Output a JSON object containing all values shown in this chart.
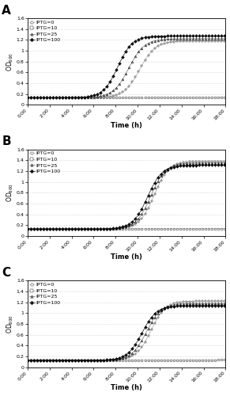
{
  "panels": [
    "A",
    "B",
    "C"
  ],
  "xlabel": "Time (h)",
  "ylabel": "OD$_{600}$",
  "ylim": [
    0,
    1.6
  ],
  "yticks": [
    0,
    0.2,
    0.4,
    0.6,
    0.8,
    1.0,
    1.2,
    1.4,
    1.6
  ],
  "ytick_labels": [
    "0",
    "0.2",
    "0.4",
    "0.6",
    "0.8",
    "1",
    "1.2",
    "1.4",
    "1.6"
  ],
  "xtick_positions": [
    0,
    2,
    4,
    6,
    8,
    10,
    12,
    14,
    16,
    18
  ],
  "xtick_labels": [
    "0:00",
    "2:00",
    "4:00",
    "6:00",
    "8:00",
    "10:00",
    "12:00",
    "14:00",
    "16:00",
    "18:00"
  ],
  "legend_labels": [
    "IPTG=0",
    "IPTG=10",
    "IPTG=25",
    "IPTG=100"
  ],
  "panel_A": {
    "plateau": [
      0.15,
      1.18,
      1.22,
      1.27
    ],
    "midpoint": [
      50,
      10.2,
      9.2,
      8.2
    ],
    "steepness": [
      0.3,
      1.4,
      1.4,
      1.5
    ],
    "baseline": 0.13
  },
  "panel_B": {
    "plateau": [
      0.14,
      1.38,
      1.35,
      1.31
    ],
    "midpoint": [
      50,
      11.5,
      11.2,
      10.9
    ],
    "steepness": [
      0.3,
      1.5,
      1.5,
      1.5
    ],
    "baseline": 0.13
  },
  "panel_C": {
    "plateau": [
      0.14,
      1.22,
      1.18,
      1.14
    ],
    "midpoint": [
      50,
      11.2,
      10.8,
      10.4
    ],
    "steepness": [
      0.3,
      1.5,
      1.5,
      1.5
    ],
    "baseline": 0.13
  },
  "line_colors": [
    "#bbbbbb",
    "#aaaaaa",
    "#777777",
    "#111111"
  ],
  "marker_styles": [
    "o",
    "s",
    "^",
    "D"
  ],
  "marker_facecolors": [
    "white",
    "white",
    "#888888",
    "#111111"
  ],
  "marker_sizes": [
    2.0,
    2.0,
    2.0,
    2.0
  ],
  "markevery": 8,
  "linewidth": 0.5
}
